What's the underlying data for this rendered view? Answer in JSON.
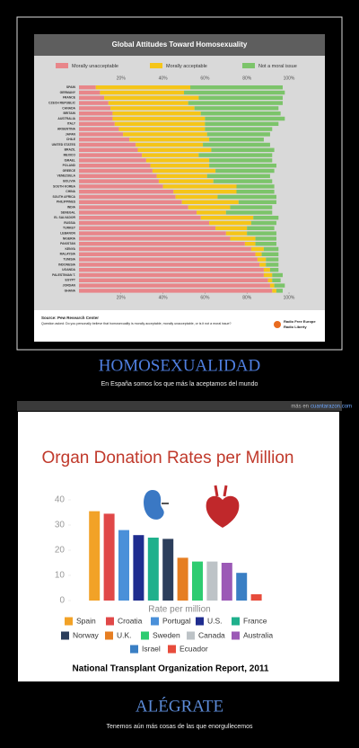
{
  "chart_data": [
    {
      "type": "stackedbarh",
      "title": "Global Attitudes Toward Homosexuality",
      "categories": [
        "SPAIN",
        "GERMANY",
        "FRANCE",
        "CZECH REPUBLIC",
        "CANADA",
        "BRITAIN",
        "AUSTRALIA",
        "ITALY",
        "ARGENTINA",
        "JAPAN",
        "CHILE",
        "UNITED STATES",
        "BRAZIL",
        "MEXICO",
        "ISRAEL",
        "POLAND",
        "GREECE",
        "VENEZUELA",
        "BOLIVIA",
        "SOUTH KOREA",
        "CHINA",
        "SOUTH AFRICA",
        "PHILIPPINES",
        "INDIA",
        "SENEGAL",
        "EL SALVADOR",
        "RUSSIA",
        "TURKEY",
        "LEBANON",
        "NIGERIA",
        "PAKISTAN",
        "KENYA",
        "MALAYSIA",
        "TUNISIA",
        "INDONESIA",
        "UGANDA",
        "PALESTINIAN T.",
        "EGYPT",
        "JORDAN",
        "GHANA"
      ],
      "series": [
        {
          "name": "Morally unacceptable",
          "color": "#e8868a",
          "values": [
            8,
            10,
            12,
            14,
            15,
            16,
            16,
            17,
            19,
            21,
            24,
            27,
            28,
            30,
            32,
            34,
            35,
            37,
            38,
            40,
            45,
            46,
            49,
            52,
            56,
            58,
            62,
            65,
            70,
            72,
            79,
            82,
            84,
            85,
            86,
            88,
            88,
            90,
            91,
            92
          ]
        },
        {
          "name": "Morally acceptable",
          "color": "#f5c518",
          "values": [
            45,
            40,
            45,
            38,
            40,
            42,
            44,
            43,
            41,
            40,
            38,
            32,
            35,
            27,
            30,
            28,
            30,
            24,
            26,
            35,
            30,
            20,
            27,
            20,
            14,
            25,
            20,
            15,
            10,
            12,
            5,
            6,
            3,
            4,
            3,
            3,
            4,
            2,
            2,
            2
          ]
        },
        {
          "name": "Not a moral issue",
          "color": "#7cc46a",
          "values": [
            44,
            48,
            40,
            45,
            40,
            38,
            38,
            35,
            32,
            30,
            26,
            32,
            30,
            35,
            30,
            32,
            28,
            30,
            28,
            18,
            18,
            28,
            18,
            20,
            22,
            12,
            12,
            13,
            14,
            10,
            10,
            7,
            8,
            6,
            6,
            4,
            5,
            4,
            5,
            3
          ]
        }
      ],
      "xlim": [
        0,
        100
      ],
      "xticks": [
        {
          "value": 20,
          "label": "20%"
        },
        {
          "value": 40,
          "label": "40%"
        },
        {
          "value": 60,
          "label": "60%"
        },
        {
          "value": 80,
          "label": "80%"
        },
        {
          "value": 100,
          "label": "100%"
        }
      ],
      "source": "Source: Pew Research Center",
      "question": "Question asked: Do you personally believe that homosexuality is morally acceptable, morally unacceptable, or is it not a moral issue?",
      "credit": [
        "Radio Free Europe",
        "Radio Liberty"
      ]
    },
    {
      "type": "bar",
      "title": "Organ Donation Rates per Million",
      "categories": [
        "Spain",
        "Croatia",
        "Portugal",
        "U.S.",
        "France",
        "Norway",
        "U.K.",
        "Sweden",
        "Canada",
        "Australia",
        "Israel",
        "Ecuador"
      ],
      "values": [
        35.5,
        34.5,
        28,
        26,
        25,
        24.5,
        17,
        15.5,
        15.5,
        15,
        11,
        2.5
      ],
      "colors": [
        "#f2a227",
        "#e04848",
        "#4a90d9",
        "#1f2d8f",
        "#1fb08c",
        "#2c3e5c",
        "#e67e22",
        "#2ecc71",
        "#bdc3c7",
        "#9b59b6",
        "#3a7fc4",
        "#e74c3c"
      ],
      "ylim": [
        0,
        40
      ],
      "yticks": [
        0,
        10,
        20,
        30,
        40
      ],
      "xlabel": "Rate per million",
      "caption": "National Transplant Organization Report, 2011"
    }
  ],
  "captions": [
    {
      "title": "HOMOSEXUALIDAD",
      "text": "En España somos los que más la aceptamos del mundo"
    },
    {
      "title": "ALÉGRATE",
      "text": "Tenemos aún más cosas de las que enorgullecemos"
    }
  ],
  "link": {
    "prefix": "más en",
    "site": "cuantarazon.com"
  }
}
